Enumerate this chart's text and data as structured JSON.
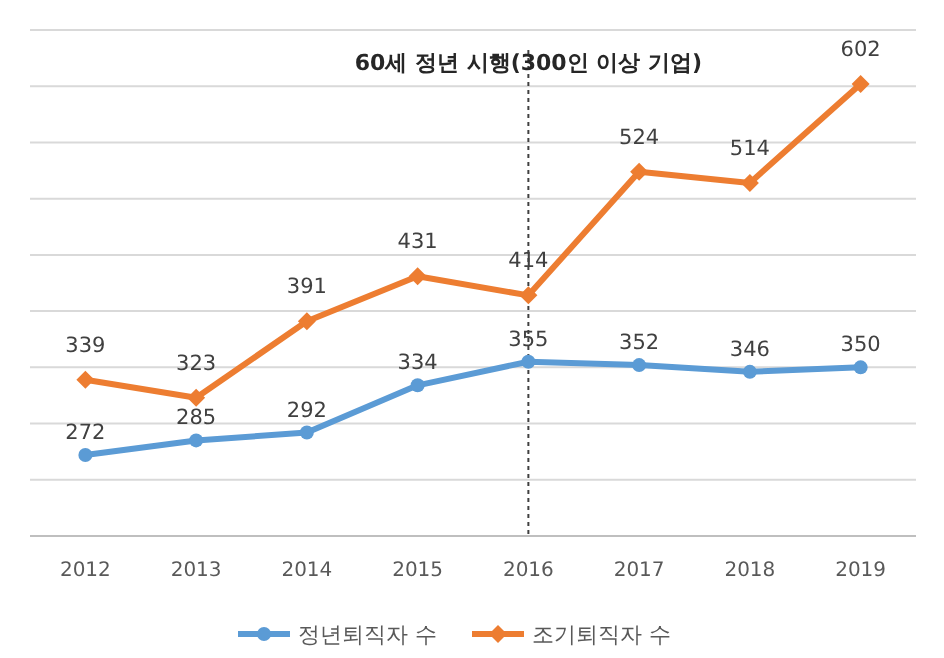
{
  "chart_data": {
    "type": "line",
    "categories": [
      "2012",
      "2013",
      "2014",
      "2015",
      "2016",
      "2017",
      "2018",
      "2019"
    ],
    "series": [
      {
        "name": "정년퇴직자 수",
        "color": "#5b9bd5",
        "marker": "circle",
        "values": [
          272,
          285,
          292,
          334,
          355,
          352,
          346,
          350
        ]
      },
      {
        "name": "조기퇴직자 수",
        "color": "#ed7d31",
        "marker": "diamond",
        "values": [
          339,
          323,
          391,
          431,
          414,
          524,
          514,
          602
        ]
      }
    ],
    "ylim": [
      200,
      650
    ],
    "yticks": [
      {
        "value": 200,
        "label": null
      },
      {
        "value": 250,
        "label": null
      },
      {
        "value": 300,
        "label": null
      },
      {
        "value": 350,
        "label": null
      },
      {
        "value": 400,
        "label": null
      },
      {
        "value": 450,
        "label": null
      },
      {
        "value": 500,
        "label": null
      },
      {
        "value": 550,
        "label": null
      },
      {
        "value": 600,
        "label": null
      },
      {
        "value": 650,
        "label": null
      }
    ],
    "tick_labels": "x",
    "grid": "y",
    "legend": "bottom",
    "data_labels": true,
    "ref_lines": [
      {
        "axis": "x",
        "value": "2016",
        "label": "60세 정년 시행(300인 이상 기업)",
        "line_style": "dotted",
        "color": "#404040"
      }
    ]
  }
}
